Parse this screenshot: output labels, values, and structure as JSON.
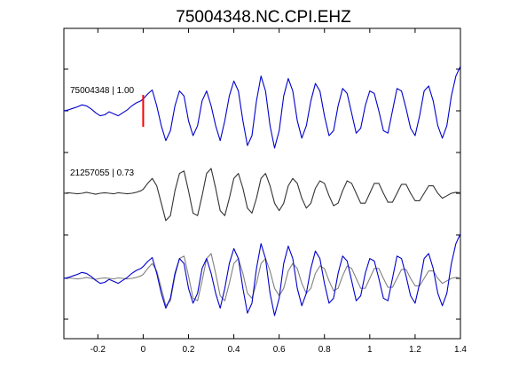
{
  "chart_data": {
    "type": "line",
    "title": "75004348.NC.CPI.EHZ",
    "xlabel": "",
    "ylabel": "",
    "xlim": [
      -0.35,
      1.4
    ],
    "x_ticks": [
      -0.2,
      0,
      0.2,
      0.4,
      0.6,
      0.8,
      1.0,
      1.2,
      1.4
    ],
    "x_tick_labels": [
      "-0.2",
      "0",
      "0.2",
      "0.4",
      "0.6",
      "0.8",
      "1",
      "1.2",
      "1.4"
    ],
    "grid": false,
    "panels": [
      {
        "label": "75004348 | 1.00",
        "traces": [
          {
            "color": "#0000cc",
            "x": [
              -0.35,
              -0.33,
              -0.31,
              -0.29,
              -0.27,
              -0.25,
              -0.23,
              -0.21,
              -0.19,
              -0.17,
              -0.15,
              -0.13,
              -0.11,
              -0.09,
              -0.07,
              -0.05,
              -0.03,
              -0.01,
              0.0,
              0.02,
              0.04,
              0.06,
              0.08,
              0.1,
              0.12,
              0.14,
              0.16,
              0.18,
              0.2,
              0.22,
              0.24,
              0.26,
              0.28,
              0.3,
              0.32,
              0.34,
              0.36,
              0.38,
              0.4,
              0.42,
              0.44,
              0.46,
              0.48,
              0.5,
              0.52,
              0.54,
              0.56,
              0.58,
              0.6,
              0.62,
              0.64,
              0.66,
              0.68,
              0.7,
              0.72,
              0.74,
              0.76,
              0.78,
              0.8,
              0.82,
              0.84,
              0.86,
              0.88,
              0.9,
              0.92,
              0.94,
              0.96,
              0.98,
              1.0,
              1.02,
              1.04,
              1.06,
              1.08,
              1.1,
              1.12,
              1.14,
              1.16,
              1.18,
              1.2,
              1.22,
              1.24,
              1.26,
              1.28,
              1.3,
              1.32,
              1.34,
              1.36,
              1.38,
              1.4
            ],
            "y": [
              0.0,
              0.02,
              0.05,
              0.08,
              0.12,
              0.1,
              0.04,
              -0.04,
              -0.1,
              -0.08,
              -0.02,
              -0.06,
              -0.1,
              -0.04,
              0.02,
              0.1,
              0.16,
              0.2,
              0.24,
              0.34,
              0.42,
              0.1,
              -0.3,
              -0.6,
              -0.4,
              0.1,
              0.4,
              0.3,
              -0.2,
              -0.5,
              -0.3,
              0.2,
              0.4,
              0.1,
              -0.3,
              -0.6,
              -0.2,
              0.3,
              0.6,
              0.4,
              -0.2,
              -0.7,
              -0.5,
              0.2,
              0.7,
              0.4,
              -0.3,
              -0.75,
              -0.4,
              0.3,
              0.65,
              0.4,
              -0.2,
              -0.55,
              -0.3,
              0.2,
              0.55,
              0.4,
              -0.1,
              -0.5,
              -0.4,
              0.1,
              0.45,
              0.35,
              -0.05,
              -0.45,
              -0.35,
              0.1,
              0.4,
              0.35,
              0.0,
              -0.4,
              -0.45,
              0.0,
              0.45,
              0.4,
              0.05,
              -0.35,
              -0.5,
              -0.1,
              0.4,
              0.5,
              0.2,
              -0.3,
              -0.55,
              -0.3,
              0.3,
              0.7,
              0.9
            ]
          }
        ]
      },
      {
        "label": "21257055 | 0.73",
        "traces": [
          {
            "color": "#333333",
            "x": [
              -0.35,
              -0.33,
              -0.31,
              -0.29,
              -0.27,
              -0.25,
              -0.23,
              -0.21,
              -0.19,
              -0.17,
              -0.15,
              -0.13,
              -0.11,
              -0.09,
              -0.07,
              -0.05,
              -0.03,
              -0.01,
              0.0,
              0.02,
              0.04,
              0.06,
              0.08,
              0.1,
              0.12,
              0.14,
              0.16,
              0.18,
              0.2,
              0.22,
              0.24,
              0.26,
              0.28,
              0.3,
              0.32,
              0.34,
              0.36,
              0.38,
              0.4,
              0.42,
              0.44,
              0.46,
              0.48,
              0.5,
              0.52,
              0.54,
              0.56,
              0.58,
              0.6,
              0.62,
              0.64,
              0.66,
              0.68,
              0.7,
              0.72,
              0.74,
              0.76,
              0.78,
              0.8,
              0.82,
              0.84,
              0.86,
              0.88,
              0.9,
              0.92,
              0.94,
              0.96,
              0.98,
              1.0,
              1.02,
              1.04,
              1.06,
              1.08,
              1.1,
              1.12,
              1.14,
              1.16,
              1.18,
              1.2,
              1.22,
              1.24,
              1.26,
              1.28,
              1.3,
              1.32,
              1.34,
              1.36,
              1.38,
              1.4
            ],
            "y": [
              0.0,
              0.01,
              0.0,
              -0.01,
              0.0,
              0.02,
              0.0,
              -0.02,
              0.0,
              0.01,
              0.0,
              -0.01,
              0.01,
              0.0,
              -0.01,
              0.0,
              0.02,
              0.05,
              0.08,
              0.2,
              0.3,
              0.15,
              -0.2,
              -0.55,
              -0.45,
              0.05,
              0.4,
              0.45,
              0.05,
              -0.4,
              -0.45,
              -0.05,
              0.4,
              0.5,
              0.1,
              -0.35,
              -0.45,
              -0.1,
              0.3,
              0.4,
              0.1,
              -0.3,
              -0.4,
              -0.1,
              0.3,
              0.4,
              0.15,
              -0.2,
              -0.35,
              -0.2,
              0.15,
              0.3,
              0.2,
              -0.1,
              -0.3,
              -0.2,
              0.1,
              0.25,
              0.2,
              -0.05,
              -0.25,
              -0.2,
              0.05,
              0.25,
              0.2,
              0.0,
              -0.2,
              -0.2,
              0.0,
              0.2,
              0.2,
              0.0,
              -0.18,
              -0.18,
              0.0,
              0.18,
              0.18,
              0.0,
              -0.15,
              -0.15,
              0.0,
              0.15,
              0.15,
              0.0,
              -0.1,
              -0.05,
              0.0,
              0.02,
              0.01
            ]
          }
        ]
      },
      {
        "label": "",
        "traces": [
          {
            "color": "#808080",
            "x": [
              -0.35,
              -0.33,
              -0.31,
              -0.29,
              -0.27,
              -0.25,
              -0.23,
              -0.21,
              -0.19,
              -0.17,
              -0.15,
              -0.13,
              -0.11,
              -0.09,
              -0.07,
              -0.05,
              -0.03,
              -0.01,
              0.0,
              0.02,
              0.04,
              0.06,
              0.08,
              0.1,
              0.12,
              0.14,
              0.16,
              0.18,
              0.2,
              0.22,
              0.24,
              0.26,
              0.28,
              0.3,
              0.32,
              0.34,
              0.36,
              0.38,
              0.4,
              0.42,
              0.44,
              0.46,
              0.48,
              0.5,
              0.52,
              0.54,
              0.56,
              0.58,
              0.6,
              0.62,
              0.64,
              0.66,
              0.68,
              0.7,
              0.72,
              0.74,
              0.76,
              0.78,
              0.8,
              0.82,
              0.84,
              0.86,
              0.88,
              0.9,
              0.92,
              0.94,
              0.96,
              0.98,
              1.0,
              1.02,
              1.04,
              1.06,
              1.08,
              1.1,
              1.12,
              1.14,
              1.16,
              1.18,
              1.2,
              1.22,
              1.24,
              1.26,
              1.28,
              1.3,
              1.32,
              1.34,
              1.36,
              1.38,
              1.4
            ],
            "y": [
              0.0,
              0.01,
              0.0,
              -0.01,
              0.0,
              0.02,
              0.0,
              -0.02,
              0.0,
              0.01,
              0.0,
              -0.01,
              0.01,
              0.0,
              -0.01,
              0.0,
              0.02,
              0.05,
              0.08,
              0.2,
              0.3,
              0.15,
              -0.2,
              -0.55,
              -0.45,
              0.05,
              0.4,
              0.45,
              0.05,
              -0.4,
              -0.45,
              -0.05,
              0.4,
              0.5,
              0.1,
              -0.35,
              -0.45,
              -0.1,
              0.3,
              0.4,
              0.1,
              -0.3,
              -0.4,
              -0.1,
              0.3,
              0.4,
              0.15,
              -0.2,
              -0.35,
              -0.2,
              0.15,
              0.3,
              0.2,
              -0.1,
              -0.3,
              -0.2,
              0.1,
              0.25,
              0.2,
              -0.05,
              -0.25,
              -0.2,
              0.05,
              0.25,
              0.2,
              0.0,
              -0.2,
              -0.2,
              0.0,
              0.2,
              0.2,
              0.0,
              -0.18,
              -0.18,
              0.0,
              0.18,
              0.18,
              0.0,
              -0.15,
              -0.15,
              0.0,
              0.15,
              0.15,
              0.0,
              -0.1,
              -0.05,
              0.0,
              0.02,
              0.01
            ]
          },
          {
            "color": "#0000cc",
            "x": [
              -0.35,
              -0.33,
              -0.31,
              -0.29,
              -0.27,
              -0.25,
              -0.23,
              -0.21,
              -0.19,
              -0.17,
              -0.15,
              -0.13,
              -0.11,
              -0.09,
              -0.07,
              -0.05,
              -0.03,
              -0.01,
              0.0,
              0.02,
              0.04,
              0.06,
              0.08,
              0.1,
              0.12,
              0.14,
              0.16,
              0.18,
              0.2,
              0.22,
              0.24,
              0.26,
              0.28,
              0.3,
              0.32,
              0.34,
              0.36,
              0.38,
              0.4,
              0.42,
              0.44,
              0.46,
              0.48,
              0.5,
              0.52,
              0.54,
              0.56,
              0.58,
              0.6,
              0.62,
              0.64,
              0.66,
              0.68,
              0.7,
              0.72,
              0.74,
              0.76,
              0.78,
              0.8,
              0.82,
              0.84,
              0.86,
              0.88,
              0.9,
              0.92,
              0.94,
              0.96,
              0.98,
              1.0,
              1.02,
              1.04,
              1.06,
              1.08,
              1.1,
              1.12,
              1.14,
              1.16,
              1.18,
              1.2,
              1.22,
              1.24,
              1.26,
              1.28,
              1.3,
              1.32,
              1.34,
              1.36,
              1.38,
              1.4
            ],
            "y": [
              0.0,
              0.02,
              0.05,
              0.08,
              0.12,
              0.1,
              0.04,
              -0.04,
              -0.1,
              -0.08,
              -0.02,
              -0.06,
              -0.1,
              -0.04,
              0.02,
              0.1,
              0.16,
              0.2,
              0.24,
              0.34,
              0.42,
              0.1,
              -0.3,
              -0.6,
              -0.4,
              0.1,
              0.4,
              0.3,
              -0.2,
              -0.5,
              -0.3,
              0.2,
              0.4,
              0.1,
              -0.3,
              -0.6,
              -0.2,
              0.3,
              0.6,
              0.4,
              -0.2,
              -0.7,
              -0.5,
              0.2,
              0.7,
              0.4,
              -0.3,
              -0.75,
              -0.4,
              0.3,
              0.65,
              0.4,
              -0.2,
              -0.55,
              -0.3,
              0.2,
              0.55,
              0.4,
              -0.1,
              -0.5,
              -0.4,
              0.1,
              0.45,
              0.35,
              -0.05,
              -0.45,
              -0.35,
              0.1,
              0.4,
              0.35,
              0.0,
              -0.4,
              -0.45,
              0.0,
              0.45,
              0.4,
              0.05,
              -0.35,
              -0.5,
              -0.1,
              0.4,
              0.5,
              0.2,
              -0.3,
              -0.55,
              -0.3,
              0.3,
              0.7,
              0.9
            ]
          }
        ]
      }
    ],
    "markers": [
      {
        "type": "vertical-line",
        "x": 0.0,
        "panel": 0,
        "color": "#ff0000"
      }
    ]
  }
}
